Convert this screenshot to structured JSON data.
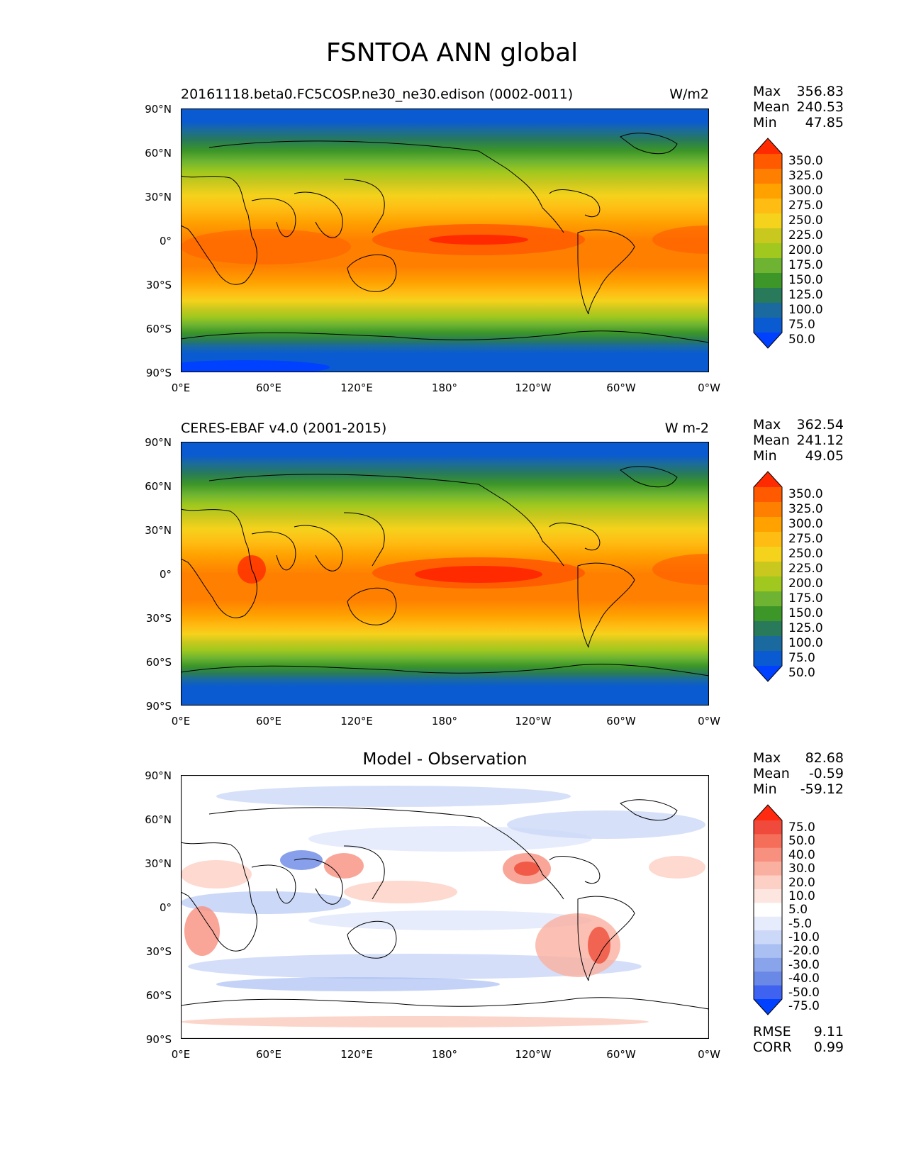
{
  "figure": {
    "title": "FSNTOA ANN global"
  },
  "panels": [
    {
      "title_left": "20161118.beta0.FC5COSP.ne30_ne30.edison (0002-0011)",
      "title_right": "W/m2",
      "stats": {
        "max_label": "Max",
        "max": "356.83",
        "mean_label": "Mean",
        "mean": "240.53",
        "min_label": "Min",
        "min": "47.85"
      },
      "colorbar": {
        "labels": [
          "350.0",
          "325.0",
          "300.0",
          "275.0",
          "250.0",
          "225.0",
          "200.0",
          "175.0",
          "150.0",
          "125.0",
          "100.0",
          "75.0",
          "50.0"
        ],
        "colors": [
          "#ff2a00",
          "#ff5a00",
          "#ff8000",
          "#ffa200",
          "#ffbd14",
          "#f5d21c",
          "#c8c81e",
          "#a0c81e",
          "#6eb432",
          "#3c9628",
          "#287a5a",
          "#1a6aa0",
          "#0a5ad2",
          "#0040ff"
        ]
      }
    },
    {
      "title_left": "CERES-EBAF v4.0 (2001-2015)",
      "title_right": "W m-2",
      "stats": {
        "max_label": "Max",
        "max": "362.54",
        "mean_label": "Mean",
        "mean": "241.12",
        "min_label": "Min",
        "min": "49.05"
      },
      "colorbar": {
        "labels": [
          "350.0",
          "325.0",
          "300.0",
          "275.0",
          "250.0",
          "225.0",
          "200.0",
          "175.0",
          "150.0",
          "125.0",
          "100.0",
          "75.0",
          "50.0"
        ],
        "colors": [
          "#ff2a00",
          "#ff5a00",
          "#ff8000",
          "#ffa200",
          "#ffbd14",
          "#f5d21c",
          "#c8c81e",
          "#a0c81e",
          "#6eb432",
          "#3c9628",
          "#287a5a",
          "#1a6aa0",
          "#0a5ad2",
          "#0040ff"
        ]
      }
    },
    {
      "title_center": "Model - Observation",
      "stats": {
        "max_label": "Max",
        "max": "82.68",
        "mean_label": "Mean",
        "mean": "-0.59",
        "min_label": "Min",
        "min": "-59.12"
      },
      "colorbar": {
        "labels": [
          "75.0",
          "50.0",
          "40.0",
          "30.0",
          "20.0",
          "10.0",
          "5.0",
          "-5.0",
          "-10.0",
          "-20.0",
          "-30.0",
          "-40.0",
          "-50.0",
          "-75.0"
        ],
        "colors": [
          "#ff2a0f",
          "#f04a3c",
          "#f56e5a",
          "#f89080",
          "#fab0a0",
          "#fcd0c4",
          "#fee6e0",
          "#ffffff",
          "#e6ecfc",
          "#ccd8f8",
          "#aabff2",
          "#8aa4ec",
          "#6a88e6",
          "#3f62f0",
          "#0040ff"
        ]
      },
      "rmse_label": "RMSE",
      "rmse": "9.11",
      "corr_label": "CORR",
      "corr": "0.99"
    }
  ],
  "axes": {
    "y_ticks": [
      "90°N",
      "60°N",
      "30°N",
      "0°",
      "30°S",
      "60°S",
      "90°S"
    ],
    "x_ticks": [
      "0°E",
      "60°E",
      "120°E",
      "180°",
      "120°W",
      "60°W",
      "0°W"
    ]
  },
  "map_colors": {
    "ocean_polar": "#0a5ad2",
    "coast_line": "#000000"
  }
}
